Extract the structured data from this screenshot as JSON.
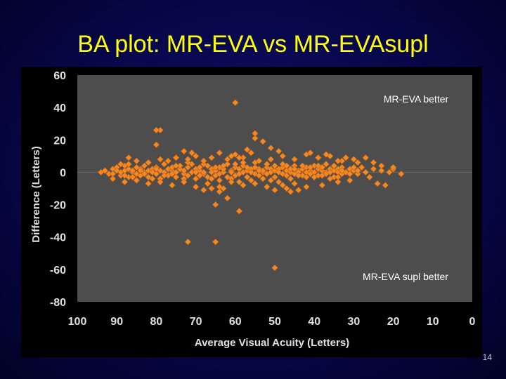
{
  "slide": {
    "title": "BA plot: MR-EVA vs MR-EVAsupl",
    "page_number": "14"
  },
  "chart_data": {
    "type": "scatter",
    "title": "BA plot: MR-EVA vs MR-EVAsupl",
    "xlabel": "Average Visual Acuity (Letters)",
    "ylabel": "Difference (Letters)",
    "xlim": [
      100,
      0
    ],
    "ylim": [
      -80,
      60
    ],
    "x_ticks": [
      "100",
      "90",
      "80",
      "70",
      "60",
      "50",
      "40",
      "30",
      "20",
      "10",
      "0"
    ],
    "y_ticks": [
      "60",
      "40",
      "20",
      "0",
      "-20",
      "-40",
      "-60",
      "-80"
    ],
    "grid": "horizontal",
    "annotations": [
      "MR-EVA better",
      "MR-EVA supl better"
    ],
    "colors": {
      "plot_area": "#4d4d4d",
      "outer_area": "#000000",
      "marker": "#f08a28",
      "gridline": "#6a6a6a",
      "axis_text": "#e0e0e0"
    },
    "series": [
      {
        "points": [
          [
            94,
            0
          ],
          [
            92,
            -1
          ],
          [
            91,
            2
          ],
          [
            90,
            3
          ],
          [
            89,
            -2
          ],
          [
            89,
            0
          ],
          [
            88,
            1
          ],
          [
            88,
            4
          ],
          [
            87,
            -3
          ],
          [
            87,
            2
          ],
          [
            86,
            0
          ],
          [
            86,
            1
          ],
          [
            85,
            -1
          ],
          [
            85,
            3
          ],
          [
            84,
            2
          ],
          [
            84,
            -2
          ],
          [
            83,
            0
          ],
          [
            83,
            4
          ],
          [
            82,
            1
          ],
          [
            82,
            -3
          ],
          [
            81,
            2
          ],
          [
            81,
            0
          ],
          [
            80,
            -1
          ],
          [
            80,
            3
          ],
          [
            79,
            1
          ],
          [
            79,
            -4
          ],
          [
            78,
            5
          ],
          [
            78,
            0
          ],
          [
            77,
            2
          ],
          [
            77,
            -2
          ],
          [
            76,
            1
          ],
          [
            76,
            3
          ],
          [
            75,
            0
          ],
          [
            75,
            -3
          ],
          [
            74,
            2
          ],
          [
            74,
            4
          ],
          [
            73,
            -1
          ],
          [
            73,
            1
          ],
          [
            72,
            3
          ],
          [
            72,
            -2
          ],
          [
            71,
            0
          ],
          [
            71,
            5
          ],
          [
            70,
            2
          ],
          [
            70,
            -4
          ],
          [
            69,
            1
          ],
          [
            69,
            3
          ],
          [
            68,
            -1
          ],
          [
            68,
            0
          ],
          [
            67,
            4
          ],
          [
            67,
            -3
          ],
          [
            66,
            2
          ],
          [
            66,
            0
          ],
          [
            65,
            1
          ],
          [
            65,
            -2
          ],
          [
            64,
            3
          ],
          [
            64,
            -1
          ],
          [
            63,
            0
          ],
          [
            63,
            2
          ],
          [
            62,
            5
          ],
          [
            62,
            -3
          ],
          [
            61,
            1
          ],
          [
            61,
            0
          ],
          [
            60,
            -2
          ],
          [
            60,
            3
          ],
          [
            59,
            2
          ],
          [
            59,
            -1
          ],
          [
            58,
            0
          ],
          [
            58,
            4
          ],
          [
            57,
            1
          ],
          [
            57,
            -3
          ],
          [
            56,
            2
          ],
          [
            56,
            0
          ],
          [
            55,
            -1
          ],
          [
            55,
            3
          ],
          [
            54,
            2
          ],
          [
            54,
            -2
          ],
          [
            53,
            0
          ],
          [
            53,
            1
          ],
          [
            52,
            3
          ],
          [
            52,
            -1
          ],
          [
            51,
            2
          ],
          [
            51,
            0
          ],
          [
            50,
            -3
          ],
          [
            50,
            1
          ],
          [
            49,
            2
          ],
          [
            49,
            0
          ],
          [
            48,
            -1
          ],
          [
            48,
            3
          ],
          [
            47,
            1
          ],
          [
            47,
            -2
          ],
          [
            46,
            0
          ],
          [
            46,
            2
          ],
          [
            45,
            4
          ],
          [
            45,
            -1
          ],
          [
            44,
            1
          ],
          [
            44,
            0
          ],
          [
            43,
            2
          ],
          [
            43,
            -2
          ],
          [
            42,
            3
          ],
          [
            42,
            0
          ],
          [
            41,
            1
          ],
          [
            41,
            -1
          ],
          [
            40,
            4
          ],
          [
            40,
            0
          ],
          [
            39,
            2
          ],
          [
            39,
            -2
          ],
          [
            38,
            1
          ],
          [
            38,
            3
          ],
          [
            37,
            0
          ],
          [
            37,
            -1
          ],
          [
            36,
            2
          ],
          [
            36,
            0
          ],
          [
            35,
            -3
          ],
          [
            35,
            1
          ],
          [
            34,
            2
          ],
          [
            34,
            0
          ],
          [
            33,
            3
          ],
          [
            33,
            -1
          ],
          [
            32,
            0
          ],
          [
            31,
            2
          ],
          [
            30,
            1
          ],
          [
            29,
            -1
          ],
          [
            28,
            3
          ],
          [
            27,
            0
          ],
          [
            25,
            2
          ],
          [
            23,
            1
          ],
          [
            21,
            0
          ],
          [
            20,
            2
          ],
          [
            18,
            -1
          ],
          [
            93,
            1
          ],
          [
            91,
            -1
          ],
          [
            90,
            1
          ],
          [
            88,
            -2
          ],
          [
            87,
            5
          ],
          [
            86,
            -3
          ],
          [
            84,
            1
          ],
          [
            83,
            -1
          ],
          [
            81,
            -4
          ],
          [
            80,
            2
          ],
          [
            78,
            -2
          ],
          [
            76,
            -1
          ],
          [
            75,
            4
          ],
          [
            73,
            -4
          ],
          [
            72,
            6
          ],
          [
            70,
            0
          ],
          [
            69,
            -2
          ],
          [
            68,
            5
          ],
          [
            66,
            -4
          ],
          [
            65,
            3
          ],
          [
            64,
            -5
          ],
          [
            63,
            4
          ],
          [
            61,
            -4
          ],
          [
            60,
            5
          ],
          [
            59,
            -6
          ],
          [
            58,
            6
          ],
          [
            57,
            3
          ],
          [
            56,
            -5
          ],
          [
            55,
            6
          ],
          [
            54,
            1
          ],
          [
            53,
            -4
          ],
          [
            52,
            5
          ],
          [
            51,
            -5
          ],
          [
            50,
            4
          ],
          [
            49,
            -6
          ],
          [
            48,
            5
          ],
          [
            47,
            4
          ],
          [
            46,
            -4
          ],
          [
            45,
            2
          ],
          [
            44,
            -2
          ],
          [
            43,
            4
          ],
          [
            42,
            -3
          ],
          [
            41,
            3
          ],
          [
            40,
            -3
          ],
          [
            39,
            4
          ],
          [
            38,
            -2
          ],
          [
            37,
            5
          ],
          [
            36,
            -4
          ],
          [
            35,
            4
          ],
          [
            34,
            -3
          ],
          [
            33,
            1
          ],
          [
            31,
            -1
          ],
          [
            30,
            3
          ],
          [
            29,
            1
          ],
          [
            26,
            -3
          ],
          [
            89,
            5
          ],
          [
            87,
            9
          ],
          [
            85,
            7
          ],
          [
            82,
            6
          ],
          [
            79,
            8
          ],
          [
            77,
            7
          ],
          [
            75,
            9
          ],
          [
            72,
            8
          ],
          [
            70,
            10
          ],
          [
            68,
            7
          ],
          [
            66,
            9
          ],
          [
            64,
            12
          ],
          [
            62,
            8
          ],
          [
            60,
            11
          ],
          [
            58,
            9
          ],
          [
            56,
            12
          ],
          [
            54,
            7
          ],
          [
            51,
            8
          ],
          [
            48,
            10
          ],
          [
            45,
            8
          ],
          [
            42,
            11
          ],
          [
            39,
            9
          ],
          [
            36,
            10
          ],
          [
            33,
            7
          ],
          [
            30,
            8
          ],
          [
            27,
            9
          ],
          [
            91,
            -4
          ],
          [
            88,
            -6
          ],
          [
            85,
            -5
          ],
          [
            82,
            -7
          ],
          [
            79,
            -6
          ],
          [
            76,
            -8
          ],
          [
            73,
            -6
          ],
          [
            70,
            -9
          ],
          [
            67,
            -7
          ],
          [
            64,
            -9
          ],
          [
            61,
            -6
          ],
          [
            58,
            -8
          ],
          [
            55,
            -7
          ],
          [
            52,
            -9
          ],
          [
            50,
            -11
          ],
          [
            48,
            -8
          ],
          [
            45,
            -7
          ],
          [
            42,
            -9
          ],
          [
            38,
            -8
          ],
          [
            34,
            -6
          ],
          [
            31,
            -5
          ],
          [
            24,
            -7
          ],
          [
            22,
            -8
          ],
          [
            80,
            17
          ],
          [
            79,
            26
          ],
          [
            73,
            13
          ],
          [
            71,
            12
          ],
          [
            68,
            -11
          ],
          [
            66,
            -10
          ],
          [
            64,
            -12
          ],
          [
            63,
            -10
          ],
          [
            62,
            -16
          ],
          [
            61,
            10
          ],
          [
            59,
            9
          ],
          [
            57,
            14
          ],
          [
            55,
            21
          ],
          [
            53,
            19
          ],
          [
            51,
            15
          ],
          [
            49,
            13
          ],
          [
            47,
            -10
          ],
          [
            46,
            -12
          ],
          [
            44,
            -11
          ],
          [
            41,
            12
          ],
          [
            37,
            11
          ],
          [
            34,
            7
          ],
          [
            32,
            9
          ],
          [
            29,
            6
          ],
          [
            25,
            6
          ],
          [
            23,
            4
          ],
          [
            20,
            3
          ],
          [
            60,
            43
          ],
          [
            55,
            24
          ],
          [
            80,
            26
          ],
          [
            72,
            -43
          ],
          [
            65,
            -43
          ],
          [
            65,
            -20
          ],
          [
            59,
            -24
          ],
          [
            50,
            -59
          ]
        ]
      }
    ]
  }
}
